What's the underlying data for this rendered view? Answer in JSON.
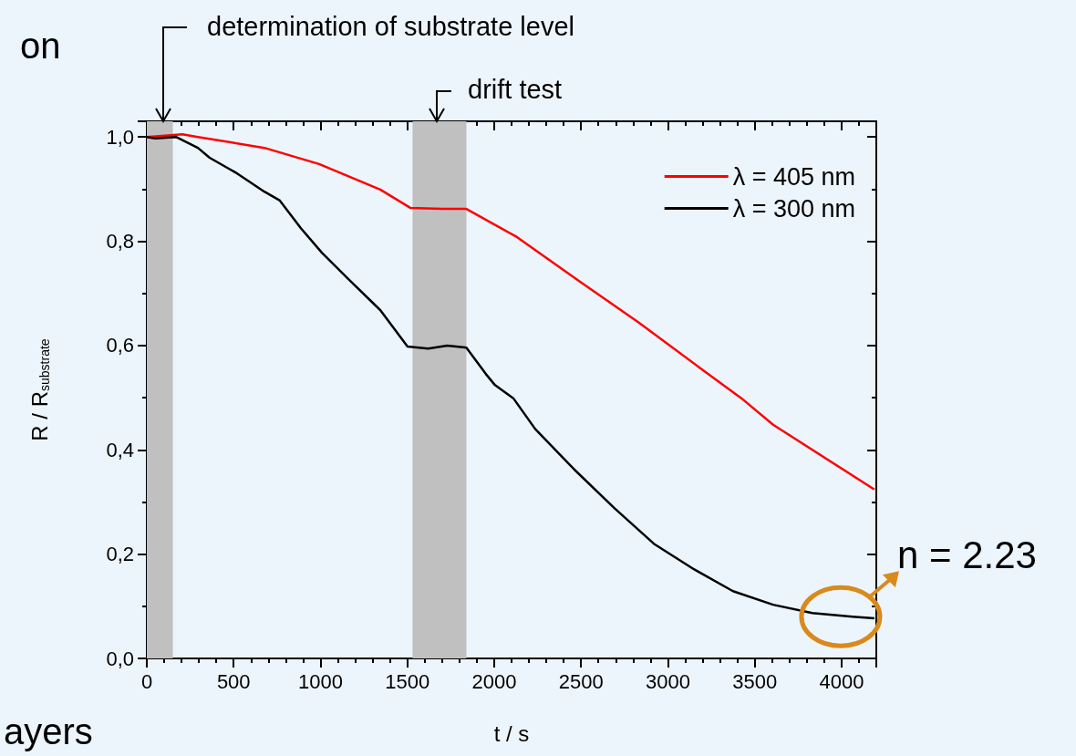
{
  "chart_data": {
    "type": "line",
    "xlabel": "t / s",
    "ylabel": "R / R$_{substrate}$",
    "xlim": [
      0,
      4200
    ],
    "xticks": [
      0,
      500,
      1000,
      1500,
      2000,
      2500,
      3000,
      3500,
      4000
    ],
    "ylim": [
      0,
      1.03
    ],
    "yticks": [
      {
        "value": 0,
        "label": "0,0"
      },
      {
        "value": 0.2,
        "label": "0,2"
      },
      {
        "value": 0.4,
        "label": "0,4"
      },
      {
        "value": 0.6,
        "label": "0,6"
      },
      {
        "value": 0.8,
        "label": "0,8"
      },
      {
        "value": 1,
        "label": "1,0"
      }
    ],
    "grid": false,
    "legend": "top right",
    "line_style": "solid",
    "marker": "none",
    "bands": [
      {
        "axis": "x",
        "from": 0,
        "to": 150,
        "color": "#c0c0c0"
      },
      {
        "axis": "x",
        "from": 1530,
        "to": 1840,
        "color": "#c0c0c0"
      }
    ],
    "series": [
      {
        "name": "λ = 405 nm",
        "color": "#ff0000",
        "x": [
          0,
          205,
          294,
          677,
          992,
          1344,
          1517,
          1700,
          1840,
          2131,
          2478,
          2829,
          3181,
          3423,
          3606,
          4189
        ],
        "values": [
          1.0,
          1.005,
          1.0,
          0.979,
          0.948,
          0.899,
          0.864,
          0.862,
          0.862,
          0.808,
          0.726,
          0.645,
          0.558,
          0.499,
          0.448,
          0.324
        ]
      },
      {
        "name": "λ = 300 nm",
        "color": "#000000",
        "x": [
          0,
          50,
          168,
          294,
          362,
          520,
          677,
          766,
          887,
          1008,
          1165,
          1344,
          1501,
          1620,
          1730,
          1840,
          1953,
          2005,
          2110,
          2236,
          2462,
          2693,
          2919,
          3150,
          3375,
          3606,
          3832,
          4063,
          4189
        ],
        "values": [
          1.0,
          0.997,
          1.0,
          0.979,
          0.96,
          0.93,
          0.895,
          0.878,
          0.825,
          0.778,
          0.726,
          0.668,
          0.598,
          0.594,
          0.6,
          0.596,
          0.545,
          0.524,
          0.499,
          0.44,
          0.362,
          0.288,
          0.22,
          0.171,
          0.129,
          0.103,
          0.087,
          0.08,
          0.077
        ]
      }
    ],
    "annotations": [
      "on",
      "determination of substrate level",
      "drift test",
      {
        "text": "n = 2.23",
        "x": 3995,
        "y": 0.08
      },
      "ayers"
    ]
  }
}
